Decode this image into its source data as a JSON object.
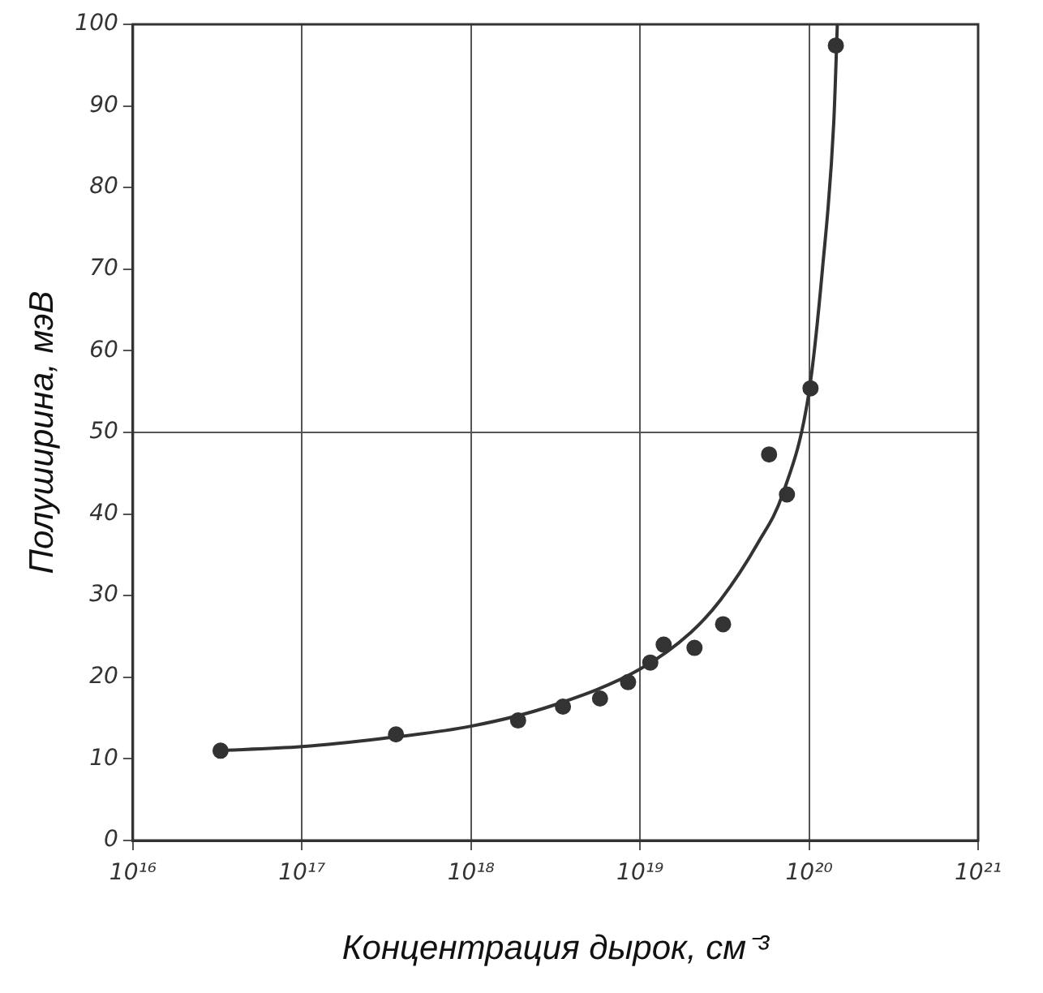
{
  "chart_data": {
    "type": "scatter",
    "xlabel": "Концентрация дырок, см⁻³",
    "ylabel": "Полуширина, мэВ",
    "log": "x",
    "grid": "x",
    "marker": "circle",
    "legend": false,
    "xlim": [
      1e+16,
      1e+21
    ],
    "xticks": [
      {
        "value": 1e+16,
        "label": "10¹⁶"
      },
      {
        "value": 1e+17,
        "label": "10¹⁷"
      },
      {
        "value": 1e+18,
        "label": "10¹⁸"
      },
      {
        "value": 1e+19,
        "label": "10¹⁹"
      },
      {
        "value": 1e+20,
        "label": "10²⁰"
      },
      {
        "value": 1e+21,
        "label": "10²¹"
      }
    ],
    "ylim": [
      0,
      100
    ],
    "yticks": [
      0,
      10,
      20,
      30,
      40,
      50,
      60,
      70,
      80,
      90,
      100
    ],
    "ref_lines": [
      {
        "axis": "y",
        "value": 50,
        "color": "#555555"
      }
    ],
    "series": [
      {
        "type": "scatter",
        "color": "#333333",
        "x": [
          3.3e+16,
          3.6e+17,
          1.9e+18,
          3.5e+18,
          5.8e+18,
          8.5e+18,
          1.15e+19,
          1.38e+19,
          2.1e+19,
          3.1e+19,
          5.8e+19,
          7.4e+19,
          1.02e+20,
          1.44e+20
        ],
        "values": [
          11,
          13,
          14.7,
          16.4,
          17.4,
          19.4,
          21.8,
          24,
          23.6,
          26.5,
          47.3,
          42.4,
          55.4,
          97.4
        ]
      },
      {
        "type": "line",
        "color": "#333333",
        "marker": "none",
        "x": [
          3e+16,
          1e+17,
          3e+17,
          1e+18,
          3e+18,
          1e+19,
          2e+19,
          3e+19,
          5e+19,
          7e+19,
          1e+20,
          1.2e+20,
          1.4e+20,
          1.47e+20
        ],
        "values": [
          11,
          11.5,
          12.5,
          14,
          16.5,
          21,
          25.5,
          29.5,
          36.5,
          42.5,
          55,
          70,
          88,
          100
        ]
      }
    ]
  }
}
